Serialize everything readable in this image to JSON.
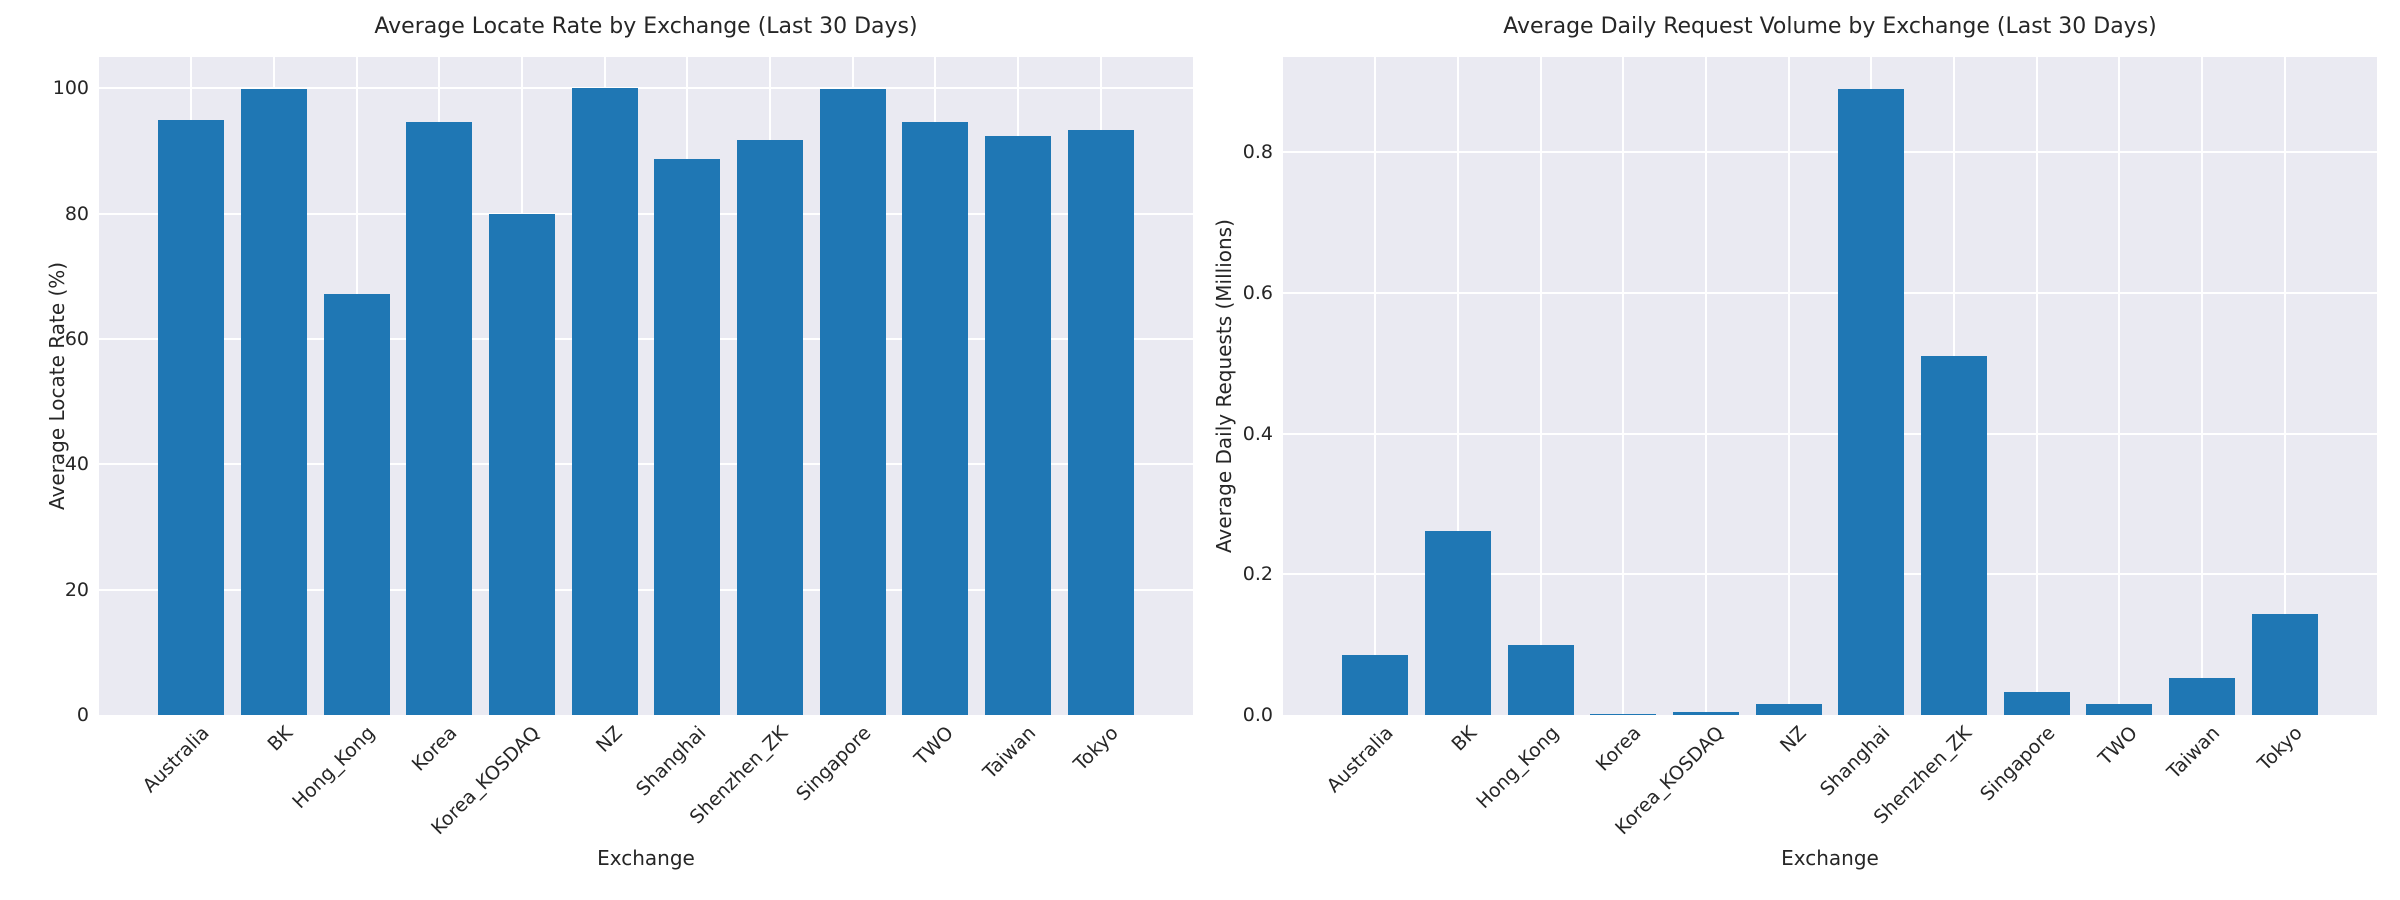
{
  "figure": {
    "background": "#ffffff",
    "panel_background": "#eaeaf2",
    "gridline_color": "#ffffff",
    "text_color": "#262626"
  },
  "chart_data": [
    {
      "type": "bar",
      "title": "Average Locate Rate by Exchange (Last 30 Days)",
      "xlabel": "Exchange",
      "ylabel": "Average Locate Rate (%)",
      "categories": [
        "Australia",
        "BK",
        "Hong_Kong",
        "Korea",
        "Korea_KOSDAQ",
        "NZ",
        "Shanghai",
        "Shenzhen_ZK",
        "Singapore",
        "TWO",
        "Taiwan",
        "Tokyo"
      ],
      "values": [
        95.0,
        99.9,
        67.2,
        94.6,
        80.0,
        100.0,
        88.8,
        91.8,
        99.9,
        94.6,
        92.4,
        93.4
      ],
      "yticks": [
        0,
        20,
        40,
        60,
        80,
        100
      ],
      "ytick_labels": [
        "0",
        "20",
        "40",
        "60",
        "80",
        "100"
      ],
      "ylim": [
        0,
        105
      ],
      "grid": true,
      "legend": "none",
      "bar_color": "#1f77b4",
      "xtick_rotation_deg": 45
    },
    {
      "type": "bar",
      "title": "Average Daily Request Volume by Exchange (Last 30 Days)",
      "xlabel": "Exchange",
      "ylabel": "Average Daily Requests (Millions)",
      "categories": [
        "Australia",
        "BK",
        "Hong_Kong",
        "Korea",
        "Korea_KOSDAQ",
        "NZ",
        "Shanghai",
        "Shenzhen_ZK",
        "Singapore",
        "TWO",
        "Taiwan",
        "Tokyo"
      ],
      "values": [
        0.085,
        0.262,
        0.099,
        0.002,
        0.004,
        0.016,
        0.89,
        0.51,
        0.032,
        0.015,
        0.053,
        0.144
      ],
      "yticks": [
        0,
        0.2,
        0.4,
        0.6,
        0.8
      ],
      "ytick_labels": [
        "0.0",
        "0.2",
        "0.4",
        "0.6",
        "0.8"
      ],
      "ylim": [
        0,
        0.935
      ],
      "grid": true,
      "legend": "none",
      "bar_color": "#1f77b4",
      "xtick_rotation_deg": 45
    }
  ]
}
